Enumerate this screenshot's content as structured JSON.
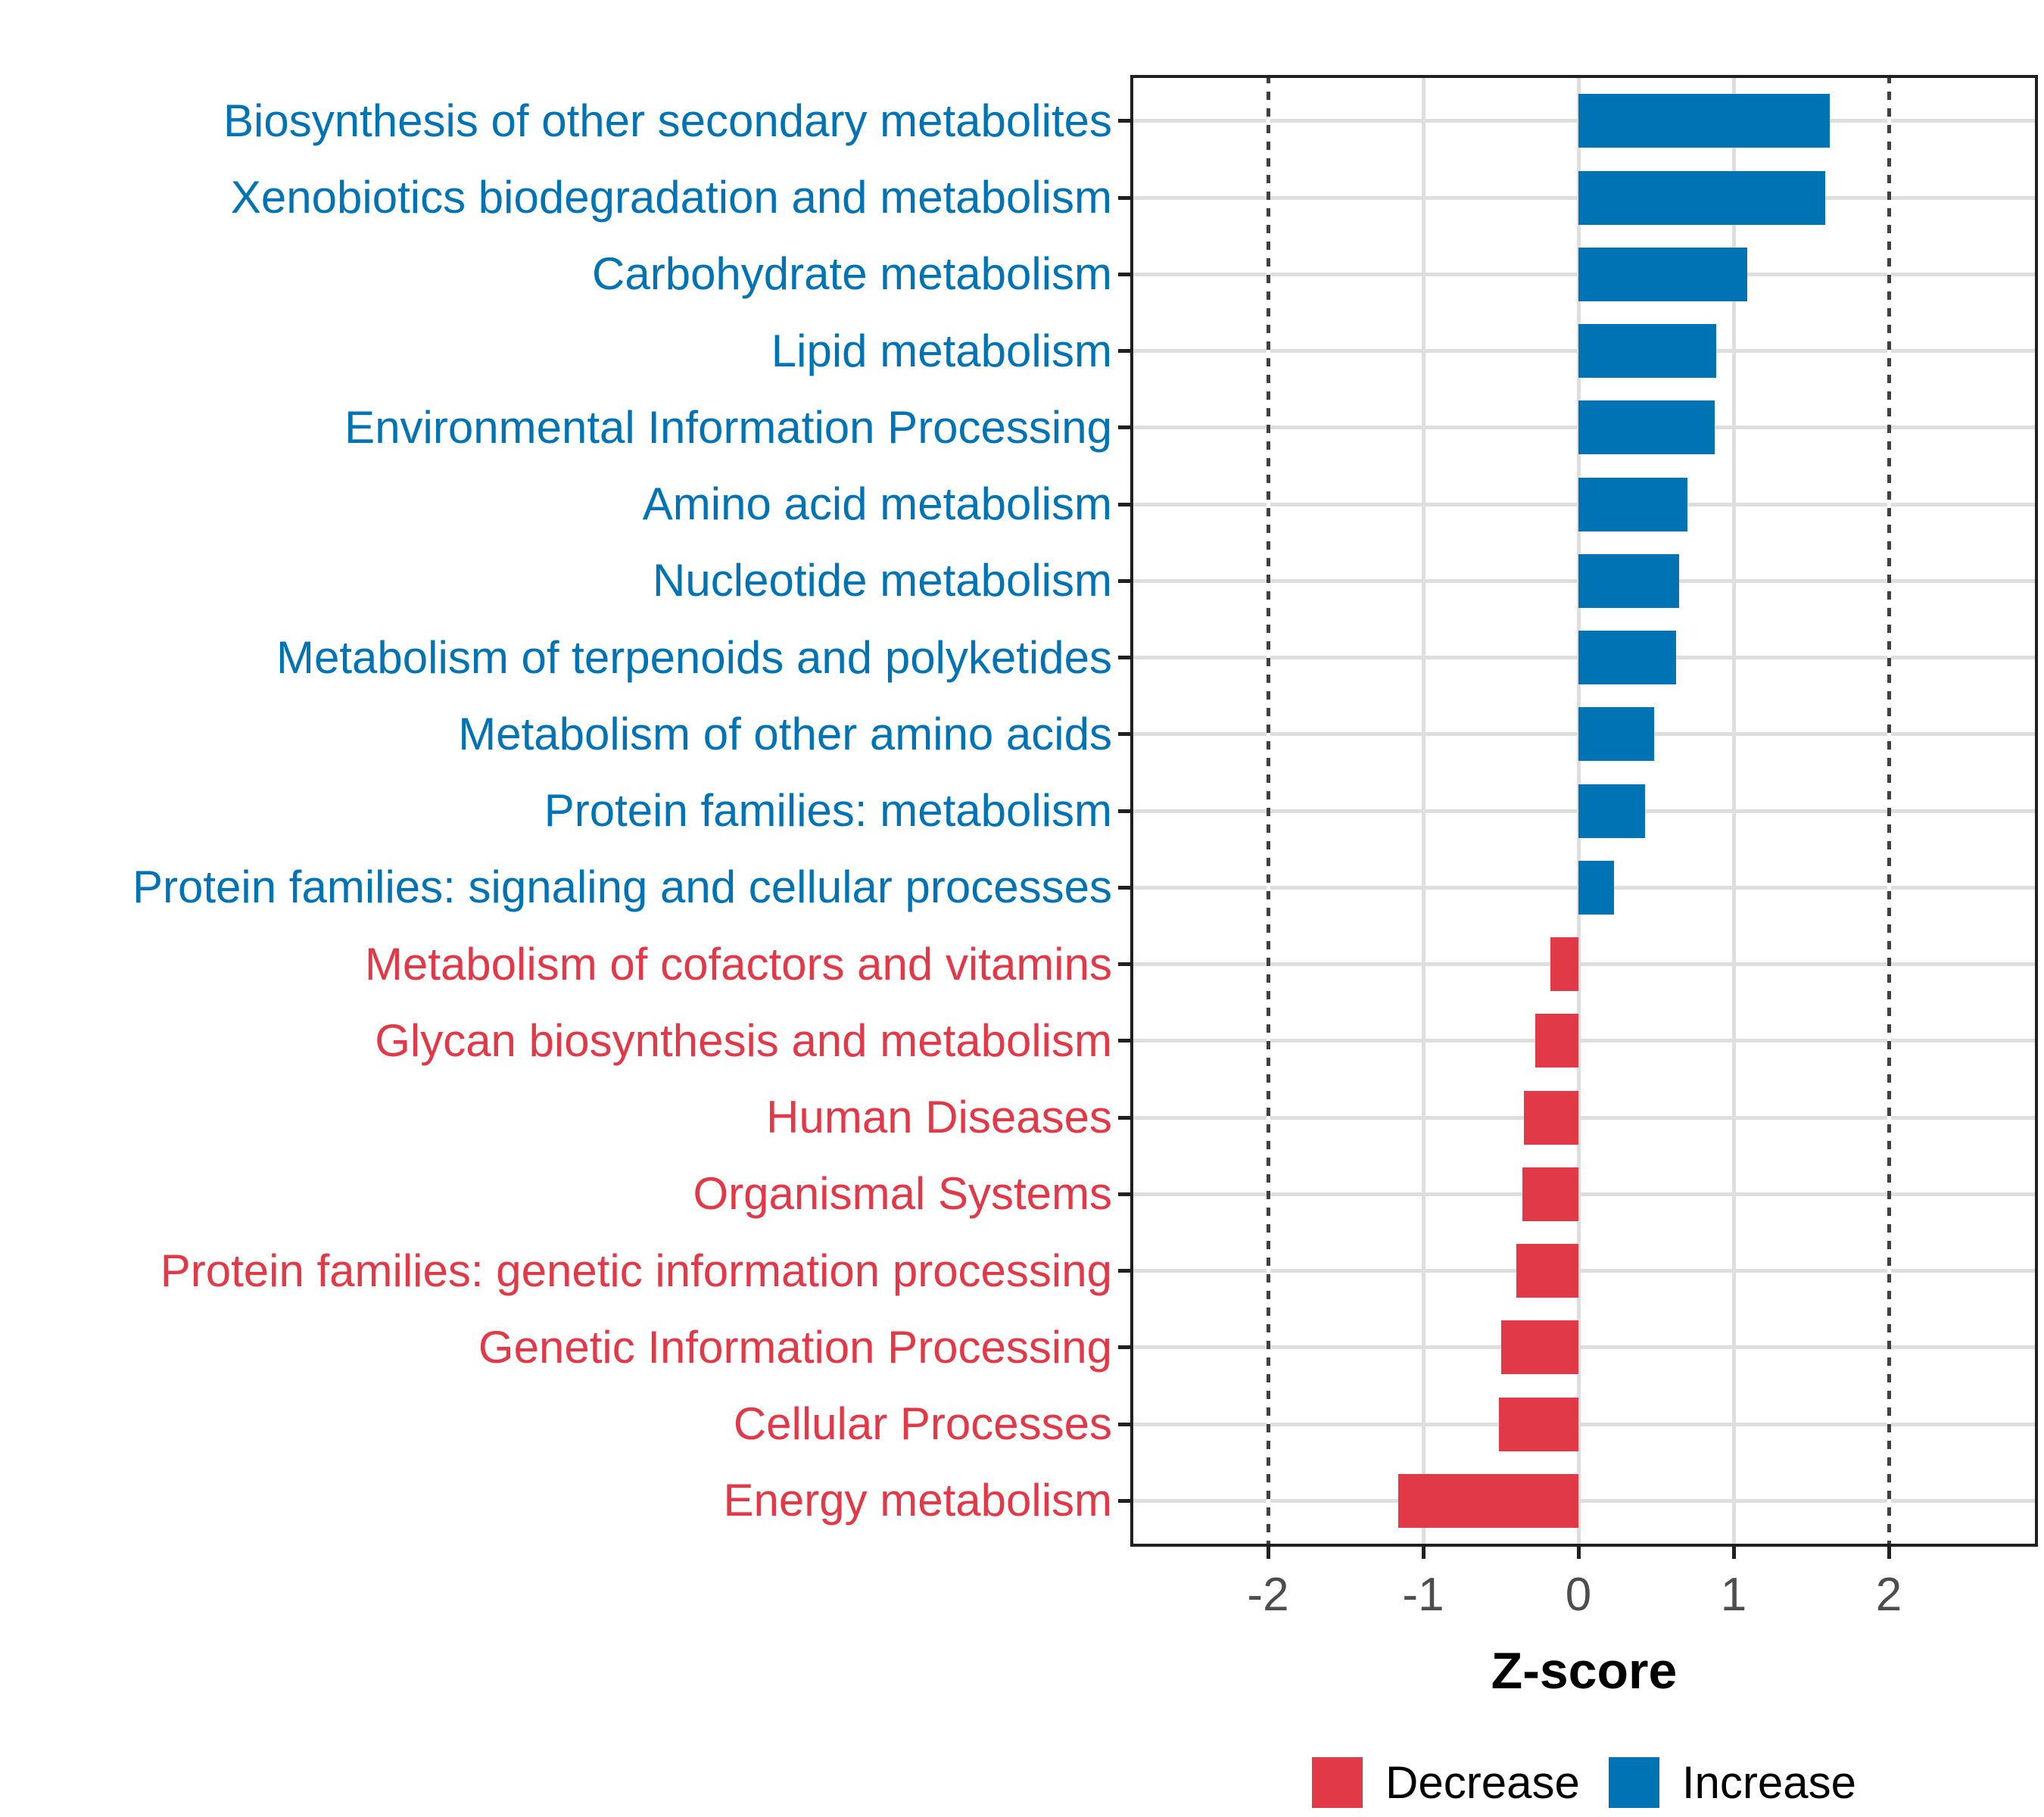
{
  "chart_data": {
    "type": "bar",
    "orientation": "horizontal",
    "xlabel": "Z-score",
    "xlim": [
      -2.9,
      2.95
    ],
    "x_ticks": [
      -2,
      -1,
      0,
      1,
      2
    ],
    "reference_lines_dotted": [
      -2,
      2
    ],
    "grid": "major-gray",
    "categories": [
      "Biosynthesis of other secondary metabolites",
      "Xenobiotics biodegradation and metabolism",
      "Carbohydrate metabolism",
      "Lipid metabolism",
      "Environmental Information Processing",
      "Amino acid metabolism",
      "Nucleotide metabolism",
      "Metabolism of terpenoids and polyketides",
      "Metabolism of other amino acids",
      "Protein families: metabolism",
      "Protein families: signaling and cellular processes",
      "Metabolism of cofactors and vitamins",
      "Glycan biosynthesis and metabolism",
      "Human Diseases",
      "Organismal Systems",
      "Protein families: genetic information processing",
      "Genetic Information Processing",
      "Cellular Processes",
      "Energy metabolism"
    ],
    "values": [
      1.62,
      1.59,
      1.09,
      0.89,
      0.88,
      0.7,
      0.65,
      0.63,
      0.49,
      0.43,
      0.23,
      -0.18,
      -0.28,
      -0.35,
      -0.36,
      -0.4,
      -0.5,
      -0.51,
      -1.16
    ],
    "directions": [
      "Increase",
      "Increase",
      "Increase",
      "Increase",
      "Increase",
      "Increase",
      "Increase",
      "Increase",
      "Increase",
      "Increase",
      "Increase",
      "Decrease",
      "Decrease",
      "Decrease",
      "Decrease",
      "Decrease",
      "Decrease",
      "Decrease",
      "Decrease"
    ],
    "colors": {
      "increase": "#0073B4",
      "decrease": "#E23948",
      "gridline": "#dedede",
      "axis_text": "#4d4d4d",
      "panel_border": "#202020"
    },
    "legend": {
      "position": "bottom",
      "entries": [
        {
          "label": "Decrease",
          "color": "#E23948"
        },
        {
          "label": "Increase",
          "color": "#0073B4"
        }
      ]
    }
  }
}
